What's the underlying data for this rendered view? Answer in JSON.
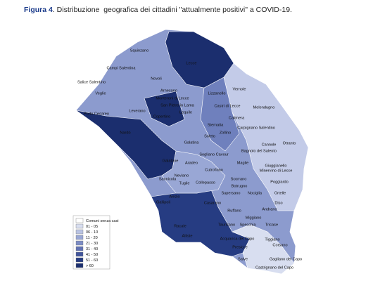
{
  "title": {
    "label": "Figura 4",
    "text": ". Distribuzione  geografica dei cittadini \"attualmente positivi\" a COVID-19."
  },
  "legend": [
    {
      "label": "Comuni senza casi",
      "color": "#ffffff"
    },
    {
      "label": "01 - 05",
      "color": "#d8def0"
    },
    {
      "label": "06 - 10",
      "color": "#b9c3e3"
    },
    {
      "label": "11 - 20",
      "color": "#99a7d5"
    },
    {
      "label": "21 - 30",
      "color": "#7c8cc5"
    },
    {
      "label": "31 - 40",
      "color": "#6071b3"
    },
    {
      "label": "41 - 50",
      "color": "#42559c"
    },
    {
      "label": "51 - 60",
      "color": "#263c82"
    },
    {
      "label": "> 60",
      "color": "#1b2e6e"
    }
  ],
  "places": [
    "Squinzano",
    "Campi Salentina",
    "Salice Salentino",
    "Novoli",
    "Veglie",
    "Lecce",
    "Arnesano",
    "Monteroni di Lecce",
    "San Pietro in Lama",
    "Lequile",
    "Leverano",
    "Porto Cesareo",
    "Copertino",
    "Lizzanello",
    "Vernole",
    "Melendugno",
    "Castri di Lecce",
    "Calimera",
    "Sternatia",
    "Zollino",
    "Carpignano Salentino",
    "Soleto",
    "Nardò",
    "Galatina",
    "Cannole",
    "Otranto",
    "Bagnolo del Salento",
    "Sogliano Cavour",
    "Aradeo",
    "Galatone",
    "Maglie",
    "Cutrofiano",
    "Giuggianello",
    "Minervino di Lecce",
    "Neviano",
    "Sannicola",
    "Tuglie",
    "Collepasso",
    "Scorrano",
    "Poggiardo",
    "Botrugno",
    "Nociglia",
    "Supersano",
    "Ortelle",
    "Alezio",
    "Gallipoli",
    "Casarano",
    "Ruffano",
    "Andrano",
    "Diso",
    "Miggiano",
    "Racale",
    "Taurisano",
    "Specchia",
    "Tricase",
    "Alliste",
    "Acquarica del Capo",
    "Tiggiano",
    "Presicce",
    "Corsano",
    "Salve",
    "Gagliano del Capo",
    "Castrignano del Capo"
  ]
}
